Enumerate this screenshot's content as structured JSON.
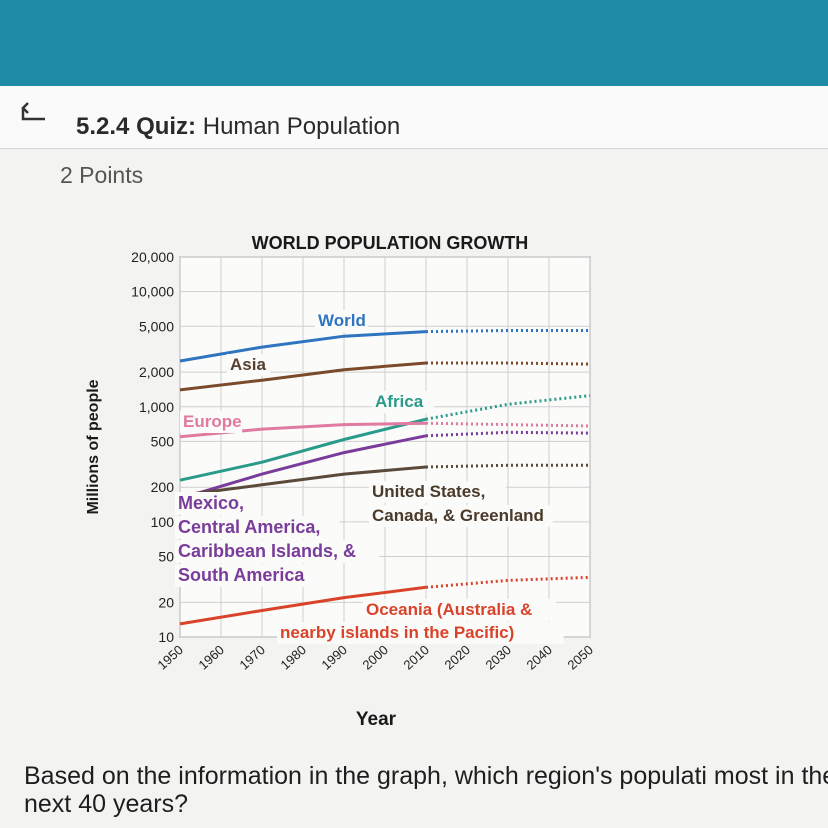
{
  "header": {
    "quiz_number": "5.2.4",
    "quiz_word": "Quiz:",
    "quiz_title": "Human Population",
    "icon": "return-arrow-icon",
    "band_color": "#1f8ba6"
  },
  "points": "2 Points",
  "question": "Based on the information in the graph, which region's populati most in the next 40 years?",
  "chart_data": {
    "type": "line",
    "title": "WORLD POPULATION GROWTH",
    "xlabel": "Year",
    "ylabel": "Millions of people",
    "yscale": "log",
    "ylim": [
      10,
      20000
    ],
    "xlim": [
      1950,
      2050
    ],
    "x_ticks": [
      "1950",
      "1960",
      "1970",
      "1980",
      "1990",
      "2000",
      "2010",
      "2020",
      "2030",
      "2040",
      "2050"
    ],
    "y_ticks": [
      "20,000",
      "10,000",
      "5,000",
      "2,000",
      "1,000",
      "500",
      "200",
      "100",
      "50",
      "20",
      "10"
    ],
    "grid": true,
    "projection_start": 2010,
    "series": [
      {
        "name": "World",
        "color": "#2f74c0",
        "x": [
          1950,
          1970,
          1990,
          2010,
          2030,
          2050
        ],
        "values": [
          2500,
          3300,
          4100,
          4500,
          4600,
          4600
        ]
      },
      {
        "name": "Asia",
        "color": "#7b4a2a",
        "x": [
          1950,
          1970,
          1990,
          2010,
          2030,
          2050
        ],
        "values": [
          1400,
          1700,
          2100,
          2400,
          2400,
          2350
        ]
      },
      {
        "name": "Africa",
        "color": "#2a9a8a",
        "x": [
          1950,
          1970,
          1990,
          2010,
          2030,
          2050
        ],
        "values": [
          230,
          330,
          520,
          780,
          1050,
          1250
        ]
      },
      {
        "name": "Europe",
        "color": "#e07aa0",
        "x": [
          1950,
          1970,
          1990,
          2010,
          2030,
          2050
        ],
        "values": [
          550,
          640,
          700,
          720,
          700,
          680
        ]
      },
      {
        "name": "Mexico, Central America, Caribbean Islands, & South America",
        "color": "#7a3c9a",
        "x": [
          1950,
          1970,
          1990,
          2010,
          2030,
          2050
        ],
        "values": [
          160,
          260,
          400,
          560,
          600,
          590
        ]
      },
      {
        "name": "United States, Canada, & Greenland",
        "color": "#5a4a3a",
        "x": [
          1950,
          1970,
          1990,
          2010,
          2030,
          2050
        ],
        "values": [
          170,
          210,
          260,
          300,
          310,
          310
        ]
      },
      {
        "name": "Oceania (Australia & nearby islands in the Pacific)",
        "color": "#d9432a",
        "x": [
          1950,
          1970,
          1990,
          2010,
          2030,
          2050
        ],
        "values": [
          13,
          17,
          22,
          27,
          31,
          33
        ]
      }
    ],
    "labels": {
      "world": "World",
      "asia": "Asia",
      "africa": "Africa",
      "europe": "Europe",
      "latam": [
        "Mexico,",
        "Central America,",
        "Caribbean Islands, &",
        "South America"
      ],
      "namerica": [
        "United States,",
        "Canada, & Greenland"
      ],
      "oceania": [
        "Oceania (Australia &",
        "nearby islands in the Pacific)"
      ]
    }
  }
}
